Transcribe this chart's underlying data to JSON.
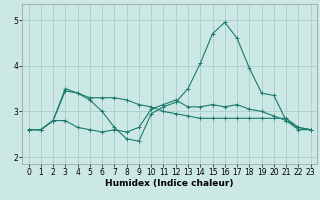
{
  "xlabel": "Humidex (Indice chaleur)",
  "bg_color": "#cce8e5",
  "grid_color": "#aaccca",
  "line_color": "#1a7a6e",
  "x_ticks": [
    0,
    1,
    2,
    3,
    4,
    5,
    6,
    7,
    8,
    9,
    10,
    11,
    12,
    13,
    14,
    15,
    16,
    17,
    18,
    19,
    20,
    21,
    22,
    23
  ],
  "y_ticks": [
    2,
    3,
    4,
    5
  ],
  "ylim": [
    1.85,
    5.35
  ],
  "xlim": [
    -0.5,
    23.5
  ],
  "series": [
    [
      2.6,
      2.6,
      2.8,
      3.5,
      3.4,
      3.25,
      3.0,
      2.65,
      2.4,
      2.35,
      2.95,
      3.1,
      3.2,
      3.5,
      4.05,
      4.7,
      4.95,
      4.6,
      3.95,
      3.4,
      3.35,
      2.8,
      2.6,
      2.6
    ],
    [
      2.6,
      2.6,
      2.8,
      2.8,
      2.65,
      2.6,
      2.55,
      2.6,
      2.55,
      2.65,
      3.05,
      3.15,
      3.25,
      3.1,
      3.1,
      3.15,
      3.1,
      3.15,
      3.05,
      3.0,
      2.9,
      2.8,
      2.65,
      2.6
    ],
    [
      2.6,
      2.6,
      2.8,
      3.45,
      3.4,
      3.3,
      3.3,
      3.3,
      3.25,
      3.15,
      3.1,
      3.0,
      2.95,
      2.9,
      2.85,
      2.85,
      2.85,
      2.85,
      2.85,
      2.85,
      2.85,
      2.85,
      2.65,
      2.6
    ]
  ],
  "tick_fontsize": 5.5,
  "xlabel_fontsize": 6.5
}
